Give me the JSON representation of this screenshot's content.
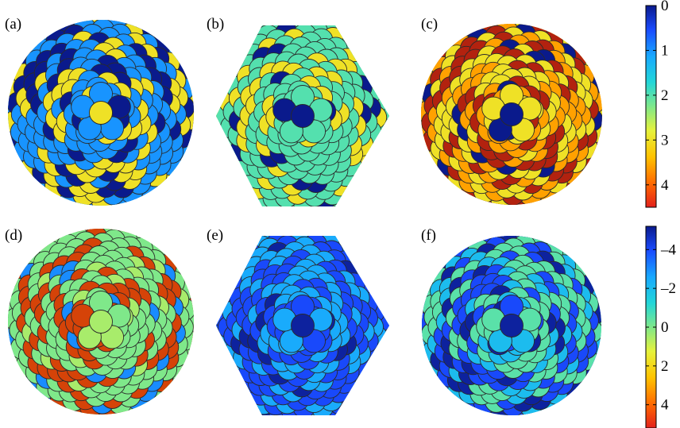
{
  "figure": {
    "panels": [
      {
        "id": "a",
        "label": "(a)",
        "row": 0,
        "col": 0,
        "shape": "sphere",
        "palette": "top",
        "counts": {
          "0": 55,
          "1": 120,
          "2": 0,
          "3": 70,
          "4": 0
        },
        "five_fold_sites": "3"
      },
      {
        "id": "b",
        "label": "(b)",
        "row": 0,
        "col": 1,
        "shape": "hexagon",
        "palette": "top",
        "counts": {
          "0": 20,
          "1": 0,
          "2": 175,
          "3": 55,
          "4": 0
        },
        "five_fold_sites": "0"
      },
      {
        "id": "c",
        "label": "(c)",
        "row": 0,
        "col": 2,
        "shape": "sphere",
        "palette": "top",
        "counts": {
          "0": 20,
          "1": 0,
          "2": 0,
          "3": 90,
          "3.6": 85,
          "4.4": 80
        },
        "five_fold_sites": "0"
      },
      {
        "id": "d",
        "label": "(d)",
        "row": 1,
        "col": 0,
        "shape": "sphere",
        "palette": "bottom",
        "counts": {
          "-3": 25,
          "0": 150,
          "0.5": 20,
          "4.5": 85
        },
        "five_fold_sites": "0.5"
      },
      {
        "id": "e",
        "label": "(e)",
        "row": 1,
        "col": 1,
        "shape": "hexagon",
        "palette": "bottom",
        "counts": {
          "-5": 20,
          "-4": 140,
          "-2.5": 110
        },
        "five_fold_sites": "-5"
      },
      {
        "id": "f",
        "label": "(f)",
        "row": 1,
        "col": 2,
        "shape": "sphere",
        "palette": "bottom",
        "counts": {
          "-5": 40,
          "-4": 80,
          "-2": 60,
          "-0.5": 90
        },
        "five_fold_sites": "-5"
      }
    ]
  },
  "colorbar_top": {
    "ticks": [
      "0",
      "1",
      "2",
      "3",
      "4"
    ],
    "tick_values": [
      0,
      1,
      2,
      3,
      4
    ],
    "range": [
      0,
      4.5
    ],
    "direction": "reversed",
    "colormap": "jet"
  },
  "colorbar_bottom": {
    "ticks": [
      "–4",
      "–2",
      "0",
      "2",
      "4"
    ],
    "tick_values": [
      -4,
      -2,
      0,
      2,
      4
    ],
    "range": [
      -5.2,
      5.2
    ],
    "direction": "reversed",
    "colormap": "jet"
  }
}
